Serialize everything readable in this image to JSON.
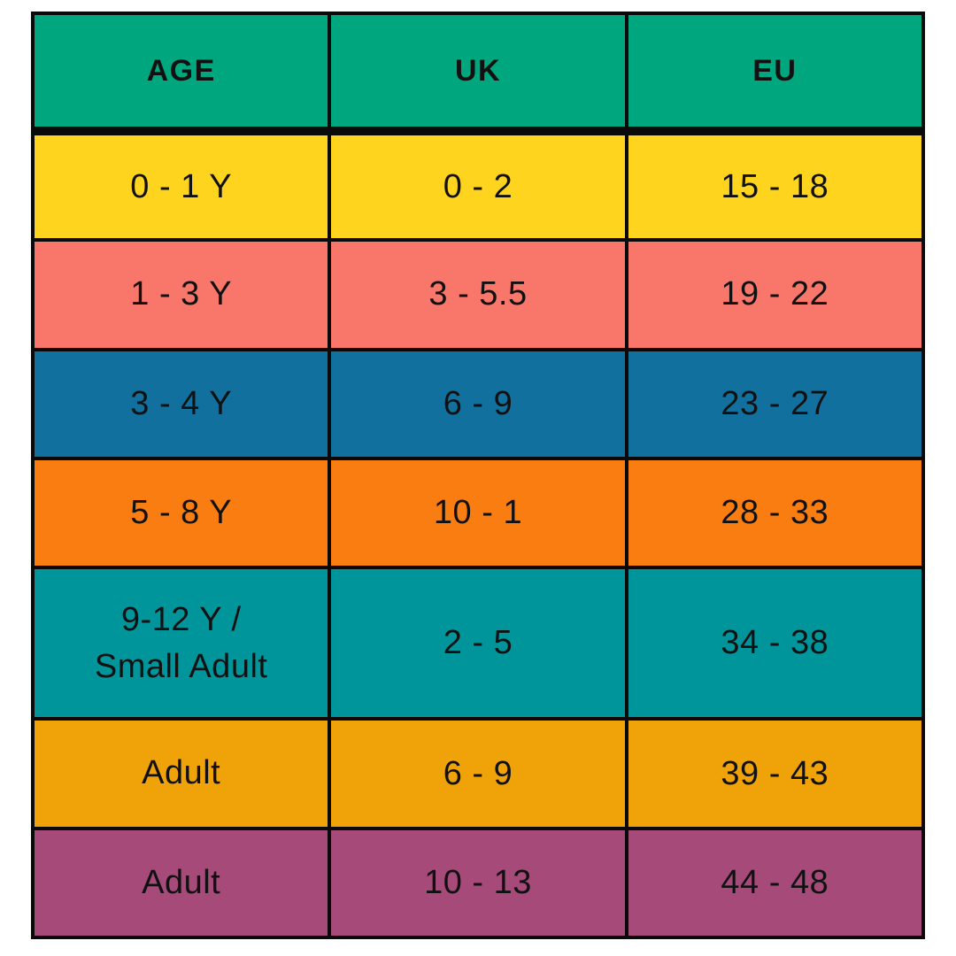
{
  "chart_data": {
    "type": "table",
    "columns": [
      "AGE",
      "UK",
      "EU"
    ],
    "rows": [
      [
        "0 - 1 Y",
        "0 - 2",
        "15 - 18"
      ],
      [
        "1 - 3 Y",
        "3 - 5.5",
        "19 - 22"
      ],
      [
        "3 - 4 Y",
        "6 - 9",
        "23 - 27"
      ],
      [
        "5 - 8 Y",
        "10 - 1",
        "28 - 33"
      ],
      [
        "9-12 Y /\nSmall Adult",
        "2 - 5",
        "34 - 38"
      ],
      [
        "Adult",
        "6 - 9",
        "39 - 43"
      ],
      [
        "Adult",
        "10 - 13",
        "44 - 48"
      ]
    ]
  },
  "colors": {
    "page_bg": "#FFFFFF",
    "border": "#0A0A0A",
    "text": "#111111",
    "header_bg": "#00A77E",
    "row_backgrounds": [
      "#FFD41E",
      "#F9766A",
      "#11709E",
      "#FA7D12",
      "#00949B",
      "#F0A309",
      "#A54A79"
    ]
  }
}
